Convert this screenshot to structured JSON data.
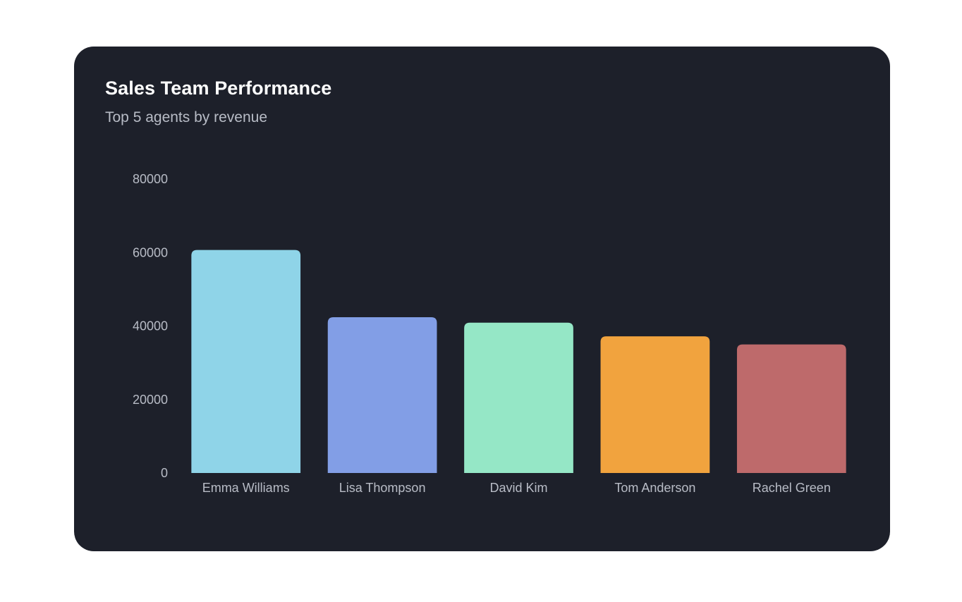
{
  "chart_data": {
    "type": "bar",
    "title": "Sales Team Performance",
    "subtitle": "Top 5 agents by revenue",
    "xlabel": "",
    "ylabel": "",
    "ylim": [
      0,
      80000
    ],
    "yticks": [
      "0",
      "20000",
      "40000",
      "60000",
      "80000"
    ],
    "grid": false,
    "categories": [
      "Emma Williams",
      "Lisa Thompson",
      "David Kim",
      "Tom Anderson",
      "Rachel Green"
    ],
    "values": [
      60700,
      42400,
      40900,
      37200,
      35000
    ],
    "colors": [
      "#8fd4e8",
      "#829ee6",
      "#95e7c6",
      "#f1a33e",
      "#be6a6b"
    ]
  }
}
